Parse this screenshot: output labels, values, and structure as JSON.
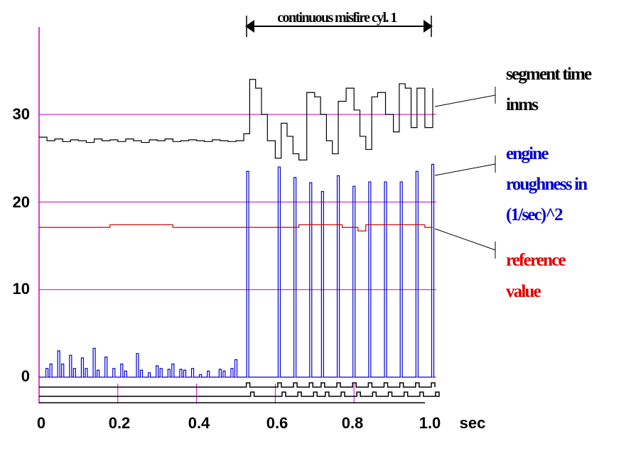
{
  "chart_data": {
    "type": "line",
    "title": "",
    "xlabel": "",
    "ylabel": "",
    "xlim": [
      0,
      1.0
    ],
    "ylim": [
      0,
      40
    ],
    "x_unit": "sec",
    "x_ticks": [
      "0",
      "0.2",
      "0.4",
      "0.6",
      "0.8",
      "1.0"
    ],
    "y_ticks": [
      "0",
      "10",
      "20",
      "30"
    ],
    "grid_lines_y": [
      0,
      10,
      20,
      30
    ],
    "grid_color": "#cc00cc",
    "annotation": {
      "text": "continuous misfire cyl. 1",
      "x_start": 0.52,
      "x_end": 1.0
    },
    "series": [
      {
        "name": "segment time in ms",
        "name_lines": [
          "segment time",
          "inms"
        ],
        "color": "#000000",
        "style": "step",
        "x": [
          0.0,
          0.02,
          0.04,
          0.06,
          0.08,
          0.1,
          0.12,
          0.14,
          0.16,
          0.18,
          0.2,
          0.22,
          0.24,
          0.26,
          0.28,
          0.3,
          0.32,
          0.34,
          0.36,
          0.38,
          0.4,
          0.42,
          0.44,
          0.46,
          0.48,
          0.5,
          0.52,
          0.535,
          0.55,
          0.565,
          0.58,
          0.6,
          0.615,
          0.63,
          0.645,
          0.66,
          0.68,
          0.7,
          0.715,
          0.73,
          0.745,
          0.76,
          0.78,
          0.8,
          0.815,
          0.83,
          0.845,
          0.86,
          0.88,
          0.9,
          0.915,
          0.93,
          0.945,
          0.96,
          0.98,
          1.0
        ],
        "values": [
          27.4,
          27.0,
          27.2,
          26.9,
          27.1,
          27.0,
          26.8,
          27.2,
          27.0,
          27.1,
          26.9,
          27.2,
          27.0,
          26.8,
          27.1,
          27.0,
          27.2,
          26.9,
          27.0,
          27.1,
          27.0,
          26.9,
          27.1,
          27.0,
          26.9,
          27.0,
          27.8,
          34.0,
          33.0,
          30.0,
          27.0,
          25.0,
          29.0,
          27.5,
          25.5,
          24.8,
          32.5,
          32.0,
          30.0,
          27.0,
          25.5,
          31.5,
          33.0,
          30.5,
          27.5,
          26.0,
          32.0,
          32.5,
          30.0,
          28.0,
          33.5,
          33.0,
          28.5,
          33.0,
          28.5,
          33.0
        ]
      },
      {
        "name": "engine roughness in (1/sec)^2",
        "name_lines": [
          "engine",
          "roughness in",
          "(1/sec)^2"
        ],
        "color": "#0000cc",
        "style": "pulses",
        "x": [
          0.02,
          0.03,
          0.05,
          0.06,
          0.08,
          0.09,
          0.11,
          0.12,
          0.14,
          0.15,
          0.17,
          0.19,
          0.21,
          0.22,
          0.25,
          0.26,
          0.28,
          0.3,
          0.31,
          0.33,
          0.34,
          0.36,
          0.37,
          0.39,
          0.41,
          0.43,
          0.46,
          0.47,
          0.49,
          0.5,
          0.53,
          0.61,
          0.65,
          0.69,
          0.72,
          0.76,
          0.8,
          0.84,
          0.88,
          0.92,
          0.96,
          1.0
        ],
        "values": [
          1.0,
          1.5,
          3.0,
          1.5,
          2.5,
          1.0,
          2.2,
          1.0,
          3.3,
          0.8,
          2.3,
          1.0,
          1.5,
          0.7,
          2.7,
          0.8,
          0.5,
          1.3,
          1.0,
          0.9,
          1.5,
          0.9,
          0.8,
          1.0,
          0.3,
          0.7,
          0.9,
          0.7,
          1.0,
          2.0,
          23.5,
          24.0,
          22.8,
          22.2,
          21.2,
          23.0,
          21.8,
          22.3,
          22.3,
          22.3,
          23.5,
          24.3
        ]
      },
      {
        "name": "reference value",
        "name_lines": [
          "reference",
          "value"
        ],
        "color": "#cc0000",
        "style": "step",
        "x": [
          0.0,
          0.18,
          0.34,
          0.66,
          0.77,
          0.81,
          0.83,
          0.98,
          1.0
        ],
        "values": [
          17.1,
          17.4,
          17.1,
          17.4,
          17.1,
          16.7,
          17.4,
          17.1,
          17.1
        ]
      }
    ],
    "digital_traces": 3
  }
}
